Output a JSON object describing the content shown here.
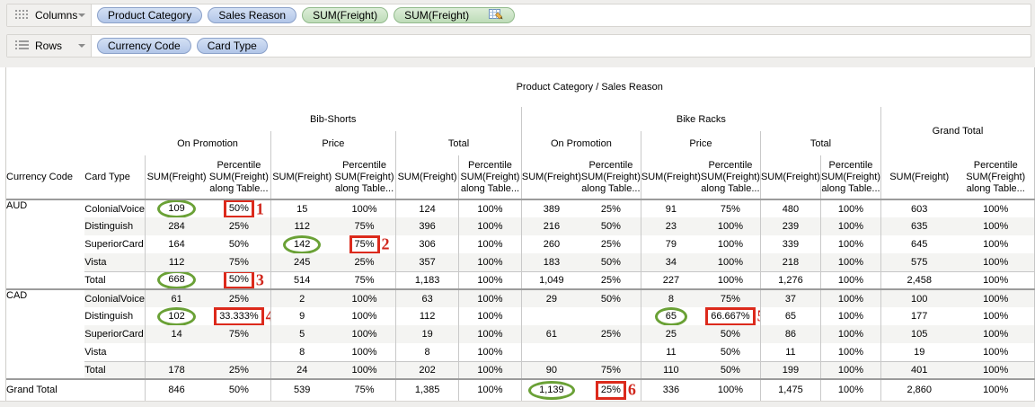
{
  "shelves": {
    "columns": {
      "label": "Columns",
      "pills": [
        {
          "text": "Product Category",
          "kind": "dimension"
        },
        {
          "text": "Sales Reason",
          "kind": "dimension"
        },
        {
          "text": "SUM(Freight)",
          "kind": "measure"
        },
        {
          "text": "SUM(Freight)",
          "kind": "measure",
          "icon": "table-calc-icon"
        }
      ]
    },
    "rows": {
      "label": "Rows",
      "pills": [
        {
          "text": "Currency Code",
          "kind": "dimension"
        },
        {
          "text": "Card Type",
          "kind": "dimension"
        }
      ]
    },
    "colors": {
      "dimension_pill": "#b2c6e8",
      "measure_pill": "#bedcb8"
    }
  },
  "table": {
    "title": "Product Category / Sales Reason",
    "row_headers": [
      "Currency Code",
      "Card Type"
    ],
    "groups": [
      {
        "label": "Bib-Shorts",
        "panes": [
          "On Promotion",
          "Price",
          "Total"
        ]
      },
      {
        "label": "Bike Racks",
        "panes": [
          "On Promotion",
          "Price",
          "Total"
        ]
      },
      {
        "label": "Grand Total",
        "panes": []
      }
    ],
    "measure_header": {
      "sum": "SUM(Freight)",
      "percentile_lines": [
        "Percentile",
        "SUM(Freight)",
        "along Table..."
      ]
    },
    "rows": [
      {
        "currency": "AUD",
        "currency_span": 5,
        "card": "ColonialVoice",
        "kind": "data",
        "values": [
          "109",
          "50%",
          "15",
          "100%",
          "124",
          "100%",
          "389",
          "25%",
          "91",
          "75%",
          "480",
          "100%",
          "603",
          "100%"
        ]
      },
      {
        "card": "Distinguish",
        "kind": "data",
        "values": [
          "284",
          "25%",
          "112",
          "75%",
          "396",
          "100%",
          "216",
          "50%",
          "23",
          "100%",
          "239",
          "100%",
          "635",
          "100%"
        ]
      },
      {
        "card": "SuperiorCard",
        "kind": "data",
        "values": [
          "164",
          "50%",
          "142",
          "75%",
          "306",
          "100%",
          "260",
          "25%",
          "79",
          "100%",
          "339",
          "100%",
          "645",
          "100%"
        ]
      },
      {
        "card": "Vista",
        "kind": "data",
        "values": [
          "112",
          "75%",
          "245",
          "25%",
          "357",
          "100%",
          "183",
          "50%",
          "34",
          "100%",
          "218",
          "100%",
          "575",
          "100%"
        ]
      },
      {
        "card": "Total",
        "kind": "total",
        "values": [
          "668",
          "50%",
          "514",
          "75%",
          "1,183",
          "100%",
          "1,049",
          "25%",
          "227",
          "100%",
          "1,276",
          "100%",
          "2,458",
          "100%"
        ]
      },
      {
        "currency": "CAD",
        "currency_span": 5,
        "card": "ColonialVoice",
        "kind": "data group-start",
        "values": [
          "61",
          "25%",
          "2",
          "100%",
          "63",
          "100%",
          "29",
          "50%",
          "8",
          "75%",
          "37",
          "100%",
          "100",
          "100%"
        ]
      },
      {
        "card": "Distinguish",
        "kind": "data",
        "values": [
          "102",
          "33.333%",
          "9",
          "100%",
          "112",
          "100%",
          "",
          "",
          "65",
          "66.667%",
          "65",
          "100%",
          "177",
          "100%"
        ]
      },
      {
        "card": "SuperiorCard",
        "kind": "data",
        "values": [
          "14",
          "75%",
          "5",
          "100%",
          "19",
          "100%",
          "61",
          "25%",
          "25",
          "50%",
          "86",
          "100%",
          "105",
          "100%"
        ]
      },
      {
        "card": "Vista",
        "kind": "data",
        "values": [
          "",
          "",
          "8",
          "100%",
          "8",
          "100%",
          "",
          "",
          "11",
          "50%",
          "11",
          "100%",
          "19",
          "100%"
        ]
      },
      {
        "card": "Total",
        "kind": "total",
        "values": [
          "178",
          "25%",
          "24",
          "100%",
          "202",
          "100%",
          "90",
          "75%",
          "110",
          "50%",
          "199",
          "100%",
          "401",
          "100%"
        ]
      },
      {
        "currency": "Grand Total",
        "kind": "grand",
        "values": [
          "846",
          "50%",
          "539",
          "75%",
          "1,385",
          "100%",
          "1,139",
          "25%",
          "336",
          "100%",
          "1,475",
          "100%",
          "2,860",
          "100%"
        ]
      }
    ],
    "annotations": [
      {
        "row": 0,
        "col": 0,
        "mark": "oval"
      },
      {
        "row": 0,
        "col": 1,
        "mark": "box",
        "num": "1"
      },
      {
        "row": 2,
        "col": 2,
        "mark": "oval"
      },
      {
        "row": 2,
        "col": 3,
        "mark": "box",
        "num": "2"
      },
      {
        "row": 4,
        "col": 0,
        "mark": "oval"
      },
      {
        "row": 4,
        "col": 1,
        "mark": "box",
        "num": "3"
      },
      {
        "row": 6,
        "col": 0,
        "mark": "oval"
      },
      {
        "row": 6,
        "col": 1,
        "mark": "box",
        "num": "4"
      },
      {
        "row": 6,
        "col": 8,
        "mark": "oval"
      },
      {
        "row": 6,
        "col": 9,
        "mark": "box",
        "num": "5"
      },
      {
        "row": 10,
        "col": 6,
        "mark": "oval"
      },
      {
        "row": 10,
        "col": 7,
        "mark": "box",
        "num": "6"
      }
    ],
    "colors": {
      "oval": "#6aa136",
      "box": "#dc2a1c",
      "annotation_number": "#d0261c"
    }
  }
}
